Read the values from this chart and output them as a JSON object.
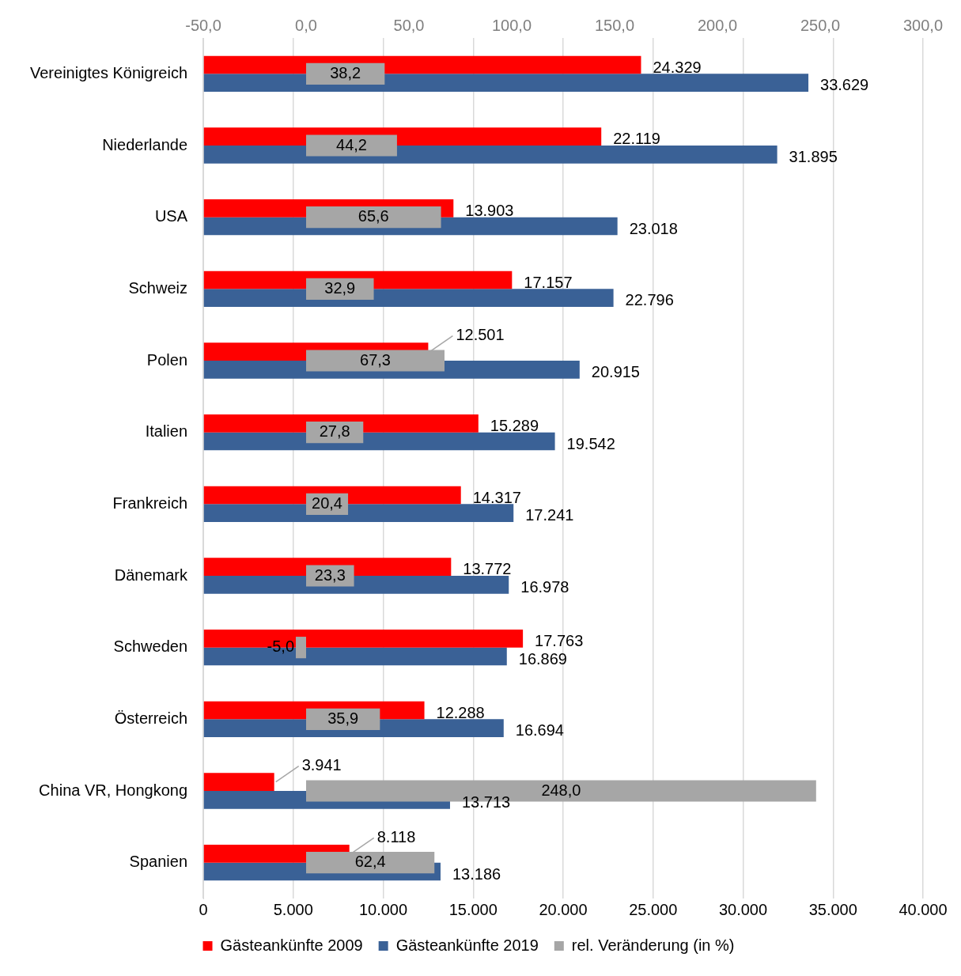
{
  "chart_data": {
    "type": "bar",
    "orientation": "horizontal",
    "categories": [
      "Vereinigtes Königreich",
      "Niederlande",
      "USA",
      "Schweiz",
      "Polen",
      "Italien",
      "Frankreich",
      "Dänemark",
      "Schweden",
      "Österreich",
      "China VR, Hongkong",
      "Spanien"
    ],
    "series": [
      {
        "name": "Gästeankünfte 2009",
        "color": "#ff0000",
        "values": [
          24329,
          22119,
          13903,
          17157,
          12501,
          15289,
          14317,
          13772,
          17763,
          12288,
          3941,
          8118
        ],
        "value_labels": [
          "24.329",
          "22.119",
          "13.903",
          "17.157",
          "12.501",
          "15.289",
          "14.317",
          "13.772",
          "17.763",
          "12.288",
          "3.941",
          "8.118"
        ]
      },
      {
        "name": "Gästeankünfte 2019",
        "color": "#3a6196",
        "values": [
          33629,
          31895,
          23018,
          22796,
          20915,
          19542,
          17241,
          16978,
          16869,
          16694,
          13713,
          13186
        ],
        "value_labels": [
          "33.629",
          "31.895",
          "23.018",
          "22.796",
          "20.915",
          "19.542",
          "17.241",
          "16.978",
          "16.869",
          "16.694",
          "13.713",
          "13.186"
        ]
      },
      {
        "name": "rel. Veränderung (in %)",
        "color": "#a6a6a6",
        "axis": "x2",
        "values": [
          38.2,
          44.2,
          65.6,
          32.9,
          67.3,
          27.8,
          20.4,
          23.3,
          -5.0,
          35.9,
          248.0,
          62.4
        ],
        "value_labels": [
          "38,2",
          "44,2",
          "65,6",
          "32,9",
          "67,3",
          "27,8",
          "20,4",
          "23,3",
          "-5,0",
          "35,9",
          "248,0",
          "62,4"
        ]
      }
    ],
    "xlim": [
      0,
      40000
    ],
    "xticks": [
      0,
      {
        "value": 5000,
        "label": "5.000"
      },
      {
        "value": 10000,
        "label": "10.000"
      },
      {
        "value": 15000,
        "label": "15.000"
      },
      {
        "value": 20000,
        "label": "20.000"
      },
      {
        "value": 25000,
        "label": "25.000"
      },
      {
        "value": 30000,
        "label": "30.000"
      },
      {
        "value": 35000,
        "label": "35.000"
      },
      {
        "value": 40000,
        "label": "40.000"
      }
    ],
    "x2lim": [
      -50,
      300
    ],
    "x2ticks": [
      {
        "value": -50,
        "label": "-50,0"
      },
      {
        "value": 0,
        "label": "0,0"
      },
      {
        "value": 50,
        "label": "50,0"
      },
      {
        "value": 100,
        "label": "100,0"
      },
      {
        "value": 150,
        "label": "150,0"
      },
      {
        "value": 200,
        "label": "200,0"
      },
      {
        "value": 250,
        "label": "250,0"
      },
      {
        "value": 300,
        "label": "300,0"
      }
    ],
    "grid": "x",
    "legend": "bottom"
  }
}
